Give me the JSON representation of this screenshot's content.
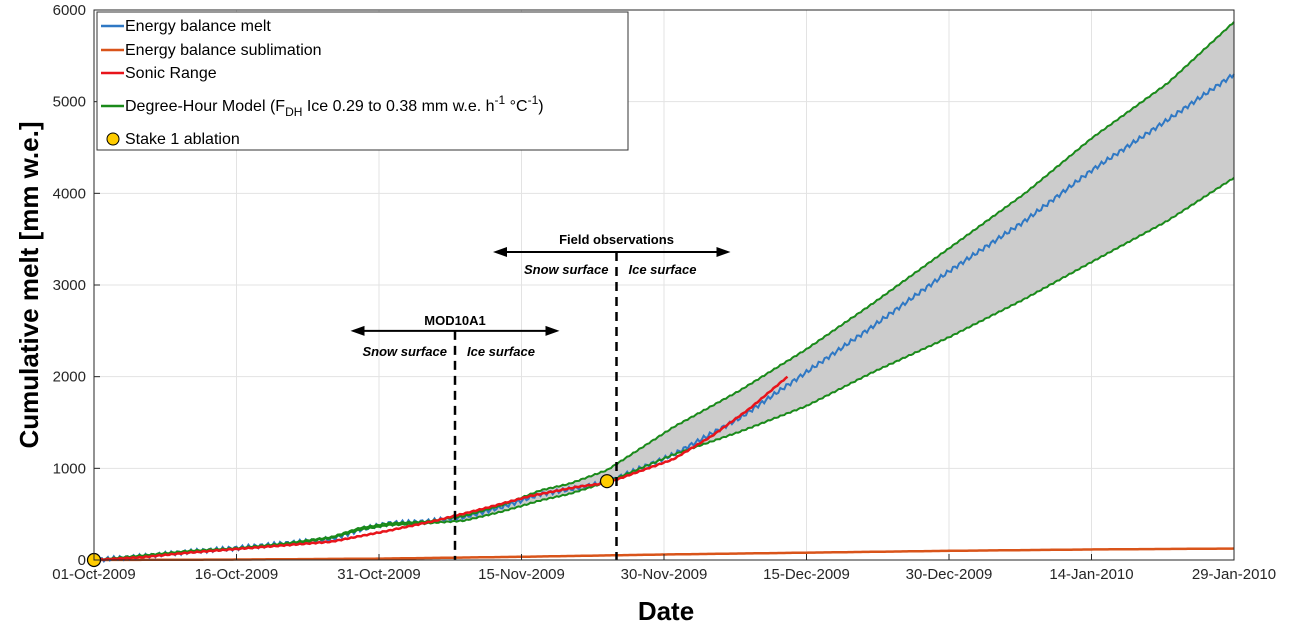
{
  "chart_data": {
    "type": "line",
    "title": "",
    "xlabel": "Date",
    "ylabel": "Cumulative melt [mm w.e.]",
    "xlim": [
      "2009-10-01",
      "2010-01-29"
    ],
    "ylim": [
      0,
      6000
    ],
    "grid": true,
    "legend_position": "top-left",
    "x_ticks": [
      "01-Oct-2009",
      "16-Oct-2009",
      "31-Oct-2009",
      "15-Nov-2009",
      "30-Nov-2009",
      "15-Dec-2009",
      "30-Dec-2009",
      "14-Jan-2010",
      "29-Jan-2010"
    ],
    "x_tick_dates": [
      "2009-10-01",
      "2009-10-16",
      "2009-10-31",
      "2009-11-15",
      "2009-11-30",
      "2009-12-15",
      "2009-12-30",
      "2010-01-14",
      "2010-01-29"
    ],
    "y_ticks": [
      0,
      1000,
      2000,
      3000,
      4000,
      5000,
      6000
    ],
    "series": [
      {
        "name": "Energy balance melt",
        "color": "#2f78c4",
        "x": [
          "2009-10-01",
          "2009-10-06",
          "2009-10-11",
          "2009-10-16",
          "2009-10-21",
          "2009-10-26",
          "2009-10-29",
          "2009-11-01",
          "2009-11-05",
          "2009-11-09",
          "2009-11-13",
          "2009-11-17",
          "2009-11-20",
          "2009-11-24",
          "2009-12-01",
          "2009-12-08",
          "2009-12-15",
          "2009-12-22",
          "2009-12-30",
          "2010-01-07",
          "2010-01-14",
          "2010-01-22",
          "2010-01-29"
        ],
        "y": [
          0,
          40,
          90,
          130,
          180,
          230,
          330,
          400,
          420,
          470,
          580,
          720,
          770,
          850,
          1150,
          1550,
          2050,
          2550,
          3150,
          3700,
          4250,
          4800,
          5300
        ]
      },
      {
        "name": "Energy balance sublimation",
        "color": "#d9541a",
        "x": [
          "2009-10-01",
          "2009-10-16",
          "2009-10-31",
          "2009-11-15",
          "2009-11-30",
          "2009-12-15",
          "2009-12-30",
          "2010-01-14",
          "2010-01-29"
        ],
        "y": [
          0,
          5,
          15,
          35,
          60,
          80,
          100,
          115,
          125
        ]
      },
      {
        "name": "Sonic Range",
        "color": "#e8141b",
        "x": [
          "2009-10-01",
          "2009-10-06",
          "2009-10-11",
          "2009-10-16",
          "2009-10-21",
          "2009-10-26",
          "2009-11-01",
          "2009-11-06",
          "2009-11-11",
          "2009-11-16",
          "2009-11-21",
          "2009-11-24",
          "2009-12-01",
          "2009-12-05",
          "2009-12-09",
          "2009-12-13"
        ],
        "y": [
          0,
          30,
          80,
          120,
          160,
          200,
          320,
          430,
          560,
          700,
          800,
          840,
          1100,
          1350,
          1650,
          2000
        ]
      },
      {
        "name": "Degree-Hour Model (F_DH Ice 0.29 to 0.38 mm w.e. h^-1 °C^-1)",
        "color": "#1a8a1a",
        "band": true,
        "band_fill": "#cccccc",
        "x": [
          "2009-10-01",
          "2009-10-06",
          "2009-10-11",
          "2009-10-16",
          "2009-10-21",
          "2009-10-26",
          "2009-10-29",
          "2009-11-01",
          "2009-11-05",
          "2009-11-09",
          "2009-11-13",
          "2009-11-17",
          "2009-11-20",
          "2009-11-24",
          "2009-12-01",
          "2009-12-08",
          "2009-12-15",
          "2009-12-22",
          "2009-12-30",
          "2010-01-07",
          "2010-01-14",
          "2010-01-22",
          "2010-01-29"
        ],
        "upper": [
          0,
          50,
          100,
          130,
          180,
          250,
          350,
          400,
          420,
          480,
          600,
          760,
          830,
          980,
          1450,
          1850,
          2300,
          2800,
          3400,
          4000,
          4600,
          5200,
          5870
        ],
        "lower": [
          0,
          45,
          95,
          120,
          170,
          240,
          330,
          380,
          400,
          430,
          530,
          650,
          720,
          850,
          1150,
          1400,
          1680,
          2050,
          2430,
          2850,
          3250,
          3700,
          4170
        ]
      }
    ],
    "points": [
      {
        "name": "Stake 1 ablation",
        "color": "#ffcc00",
        "x": [
          "2009-10-01",
          "2009-11-24"
        ],
        "y": [
          0,
          860
        ]
      }
    ],
    "annotations": {
      "mod10a1": {
        "title": "MOD10A1",
        "left": "Snow surface",
        "right": "Ice surface",
        "x": "2009-11-08",
        "arrow_from": "2009-10-28",
        "arrow_to": "2009-11-19",
        "y": 2500
      },
      "field": {
        "title": "Field observations",
        "left": "Snow surface",
        "right": "Ice surface",
        "x": "2009-11-25",
        "arrow_from": "2009-11-12",
        "arrow_to": "2009-12-07",
        "y": 3360
      }
    }
  }
}
